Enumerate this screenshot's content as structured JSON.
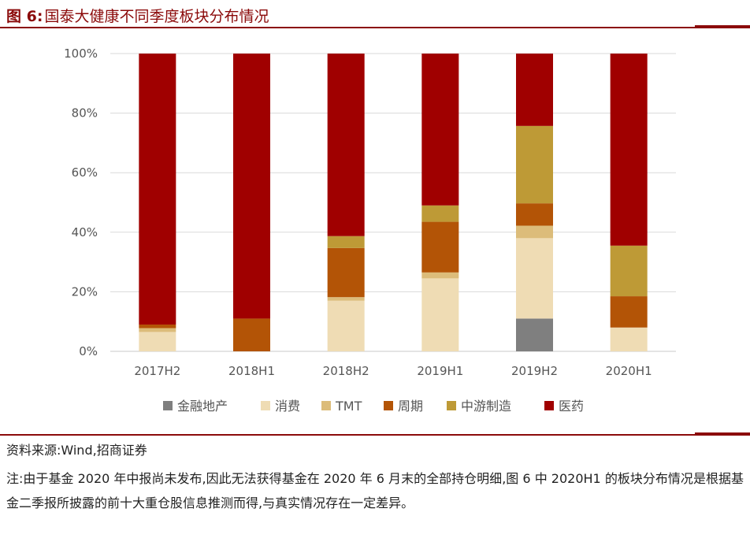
{
  "header": {
    "figure_no": "图 6:",
    "title": "国泰大健康不同季度板块分布情况"
  },
  "source": "资料来源:Wind,招商证券",
  "note": "注:由于基金 2020 年中报尚未发布,因此无法获得基金在 2020 年 6 月末的全部持仓明细,图 6 中 2020H1 的板块分布情况是根据基金二季报所披露的前十大重仓股信息推测而得,与真实情况存在一定差异。",
  "chart_data": {
    "type": "bar",
    "stacked": true,
    "title": "",
    "xlabel": "",
    "ylabel": "",
    "ylim": [
      0,
      100
    ],
    "ytick_format": "%",
    "yticks": [
      "0%",
      "20%",
      "40%",
      "60%",
      "80%",
      "100%"
    ],
    "grid": true,
    "legend_position": "bottom",
    "categories": [
      "2017H2",
      "2018H1",
      "2018H2",
      "2019H1",
      "2019H2",
      "2020H1"
    ],
    "series": [
      {
        "name": "金融地产",
        "color": "#7f7f7f",
        "values": [
          0,
          0,
          0,
          0,
          11,
          0
        ]
      },
      {
        "name": "消费",
        "color": "#efdcb4",
        "values": [
          6.5,
          0,
          17,
          24.5,
          27,
          8
        ]
      },
      {
        "name": "TMT",
        "color": "#dcbc7a",
        "values": [
          1.3,
          0,
          1.2,
          2,
          4.2,
          0
        ]
      },
      {
        "name": "周期",
        "color": "#b35406",
        "values": [
          1.2,
          11,
          16.5,
          17,
          7.5,
          10.5
        ]
      },
      {
        "name": "中游制造",
        "color": "#be9a36",
        "values": [
          0,
          0,
          4,
          5.5,
          26,
          17
        ]
      },
      {
        "name": "医药",
        "color": "#a00000",
        "values": [
          91,
          89,
          61.3,
          51,
          24.3,
          64.5
        ]
      }
    ]
  }
}
